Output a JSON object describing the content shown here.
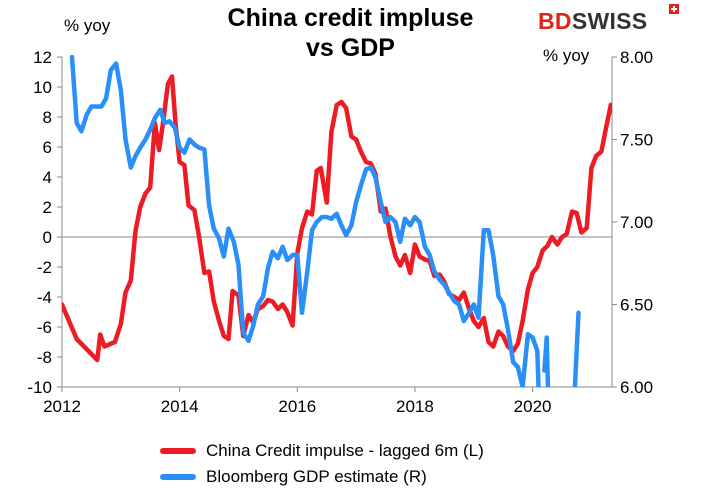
{
  "header": {
    "title_line1": "China credit impluse",
    "title_line2": "vs GDP",
    "brand_bd": "BD",
    "brand_swiss": "SWISS",
    "unit_left": "% yoy",
    "unit_right": "% yoy"
  },
  "colors": {
    "red": "#ed1c24",
    "blue": "#2a8ff7",
    "brand_red": "#e2231a"
  },
  "chart_data": {
    "type": "line",
    "title": "China credit impluse vs GDP",
    "x_ticks": [
      2012,
      2014,
      2016,
      2018,
      2020
    ],
    "x_tick_labels": [
      "2012",
      "2014",
      "2016",
      "2018",
      "2020"
    ],
    "xlim": [
      2012,
      2021.35
    ],
    "y_left": {
      "ylim": [
        -10,
        12
      ],
      "ticks": [
        -10,
        -8,
        -6,
        -4,
        -2,
        0,
        2,
        4,
        6,
        8,
        10,
        12
      ],
      "tick_labels": [
        "-10",
        "-8",
        "-6",
        "-4",
        "-2",
        "0",
        "2",
        "4",
        "6",
        "8",
        "10",
        "12"
      ],
      "unit": "% yoy"
    },
    "y_right": {
      "ylim": [
        6.0,
        8.0
      ],
      "ticks": [
        6.0,
        6.5,
        7.0,
        7.5,
        8.0
      ],
      "tick_labels": [
        "6.00",
        "6.50",
        "7.00",
        "7.50",
        "8.00"
      ],
      "unit": "% yoy"
    },
    "legend_position": "bottom",
    "series": [
      {
        "name": "China Credit impulse - lagged 6m (L)",
        "axis": "left",
        "color": "#ed1c24",
        "points": [
          [
            2012.0,
            -4.5
          ],
          [
            2012.25,
            -6.8
          ],
          [
            2012.5,
            -7.8
          ],
          [
            2012.6,
            -8.2
          ],
          [
            2012.65,
            -6.5
          ],
          [
            2012.72,
            -7.3
          ],
          [
            2012.9,
            -7.0
          ],
          [
            2013.0,
            -5.8
          ],
          [
            2013.08,
            -3.7
          ],
          [
            2013.17,
            -2.9
          ],
          [
            2013.25,
            0.4
          ],
          [
            2013.33,
            2.0
          ],
          [
            2013.42,
            2.9
          ],
          [
            2013.5,
            3.3
          ],
          [
            2013.58,
            7.6
          ],
          [
            2013.65,
            5.8
          ],
          [
            2013.72,
            7.7
          ],
          [
            2013.8,
            10.2
          ],
          [
            2013.87,
            10.7
          ],
          [
            2013.93,
            7.6
          ],
          [
            2014.0,
            5.0
          ],
          [
            2014.08,
            4.8
          ],
          [
            2014.15,
            2.1
          ],
          [
            2014.25,
            1.8
          ],
          [
            2014.33,
            0.0
          ],
          [
            2014.42,
            -2.4
          ],
          [
            2014.5,
            -2.3
          ],
          [
            2014.58,
            -4.3
          ],
          [
            2014.67,
            -5.6
          ],
          [
            2014.75,
            -6.6
          ],
          [
            2014.83,
            -6.8
          ],
          [
            2014.9,
            -3.6
          ],
          [
            2015.0,
            -3.9
          ],
          [
            2015.08,
            -6.6
          ],
          [
            2015.17,
            -5.2
          ],
          [
            2015.25,
            -5.7
          ],
          [
            2015.33,
            -4.8
          ],
          [
            2015.42,
            -4.6
          ],
          [
            2015.5,
            -4.2
          ],
          [
            2015.58,
            -4.3
          ],
          [
            2015.67,
            -4.8
          ],
          [
            2015.75,
            -4.5
          ],
          [
            2015.83,
            -5.0
          ],
          [
            2015.92,
            -5.9
          ],
          [
            2016.0,
            -1.1
          ],
          [
            2016.08,
            0.6
          ],
          [
            2016.17,
            1.7
          ],
          [
            2016.25,
            1.5
          ],
          [
            2016.33,
            4.4
          ],
          [
            2016.4,
            4.6
          ],
          [
            2016.5,
            2.3
          ],
          [
            2016.58,
            7.0
          ],
          [
            2016.67,
            8.8
          ],
          [
            2016.75,
            9.0
          ],
          [
            2016.83,
            8.6
          ],
          [
            2016.92,
            6.7
          ],
          [
            2017.0,
            6.5
          ],
          [
            2017.08,
            5.7
          ],
          [
            2017.17,
            5.0
          ],
          [
            2017.25,
            4.9
          ],
          [
            2017.33,
            4.2
          ],
          [
            2017.42,
            1.7
          ],
          [
            2017.5,
            1.9
          ],
          [
            2017.58,
            0.1
          ],
          [
            2017.67,
            -1.3
          ],
          [
            2017.75,
            -1.9
          ],
          [
            2017.83,
            -1.2
          ],
          [
            2017.92,
            -2.4
          ],
          [
            2018.0,
            -0.5
          ],
          [
            2018.08,
            -1.3
          ],
          [
            2018.17,
            -1.5
          ],
          [
            2018.25,
            -1.6
          ],
          [
            2018.33,
            -2.6
          ],
          [
            2018.42,
            -2.5
          ],
          [
            2018.5,
            -3.0
          ],
          [
            2018.58,
            -3.8
          ],
          [
            2018.67,
            -4.0
          ],
          [
            2018.75,
            -4.2
          ],
          [
            2018.83,
            -3.7
          ],
          [
            2018.92,
            -4.8
          ],
          [
            2019.0,
            -5.6
          ],
          [
            2019.08,
            -6.0
          ],
          [
            2019.17,
            -5.4
          ],
          [
            2019.25,
            -7.0
          ],
          [
            2019.33,
            -7.3
          ],
          [
            2019.42,
            -6.3
          ],
          [
            2019.5,
            -6.6
          ],
          [
            2019.58,
            -7.3
          ],
          [
            2019.67,
            -7.6
          ],
          [
            2019.75,
            -7.1
          ],
          [
            2019.83,
            -5.6
          ],
          [
            2019.92,
            -3.5
          ],
          [
            2020.0,
            -2.4
          ],
          [
            2020.08,
            -2.0
          ],
          [
            2020.17,
            -0.9
          ],
          [
            2020.25,
            -0.6
          ],
          [
            2020.33,
            0.0
          ],
          [
            2020.42,
            -0.5
          ],
          [
            2020.5,
            0.0
          ],
          [
            2020.58,
            0.2
          ],
          [
            2020.67,
            1.7
          ],
          [
            2020.75,
            1.6
          ],
          [
            2020.83,
            0.3
          ],
          [
            2020.92,
            0.6
          ],
          [
            2021.0,
            4.6
          ],
          [
            2021.08,
            5.4
          ],
          [
            2021.17,
            5.7
          ],
          [
            2021.25,
            7.3
          ],
          [
            2021.33,
            8.8
          ],
          [
            2021.35,
            8.8
          ]
        ]
      },
      {
        "name": "Bloomberg GDP estimate (R)",
        "axis": "right",
        "color": "#2a8ff7",
        "segments": [
          [
            [
              2012.17,
              8.0
            ],
            [
              2012.25,
              7.6
            ],
            [
              2012.33,
              7.55
            ],
            [
              2012.42,
              7.65
            ],
            [
              2012.5,
              7.7
            ],
            [
              2012.58,
              7.7
            ],
            [
              2012.67,
              7.7
            ],
            [
              2012.75,
              7.75
            ],
            [
              2012.83,
              7.92
            ],
            [
              2012.92,
              7.96
            ],
            [
              2013.0,
              7.8
            ],
            [
              2013.08,
              7.5
            ],
            [
              2013.17,
              7.33
            ],
            [
              2013.25,
              7.4
            ],
            [
              2013.33,
              7.45
            ],
            [
              2013.42,
              7.5
            ],
            [
              2013.5,
              7.56
            ],
            [
              2013.58,
              7.63
            ],
            [
              2013.67,
              7.68
            ],
            [
              2013.75,
              7.6
            ],
            [
              2013.83,
              7.61
            ],
            [
              2013.92,
              7.57
            ],
            [
              2014.0,
              7.45
            ],
            [
              2014.08,
              7.42
            ],
            [
              2014.17,
              7.5
            ],
            [
              2014.25,
              7.47
            ],
            [
              2014.33,
              7.45
            ],
            [
              2014.42,
              7.44
            ],
            [
              2014.5,
              7.1
            ],
            [
              2014.58,
              6.96
            ],
            [
              2014.67,
              6.9
            ],
            [
              2014.75,
              6.79
            ],
            [
              2014.83,
              6.96
            ],
            [
              2014.92,
              6.88
            ],
            [
              2015.0,
              6.74
            ],
            [
              2015.08,
              6.33
            ],
            [
              2015.17,
              6.28
            ],
            [
              2015.25,
              6.37
            ],
            [
              2015.33,
              6.5
            ],
            [
              2015.42,
              6.55
            ],
            [
              2015.5,
              6.72
            ],
            [
              2015.58,
              6.82
            ],
            [
              2015.67,
              6.78
            ],
            [
              2015.75,
              6.85
            ],
            [
              2015.83,
              6.77
            ],
            [
              2015.92,
              6.8
            ],
            [
              2016.0,
              6.8
            ],
            [
              2016.08,
              6.45
            ],
            [
              2016.17,
              6.7
            ],
            [
              2016.25,
              6.95
            ],
            [
              2016.33,
              7.0
            ],
            [
              2016.42,
              7.03
            ],
            [
              2016.5,
              7.03
            ],
            [
              2016.58,
              7.02
            ],
            [
              2016.67,
              7.05
            ],
            [
              2016.75,
              6.98
            ],
            [
              2016.83,
              6.92
            ],
            [
              2016.92,
              6.98
            ],
            [
              2017.0,
              7.12
            ],
            [
              2017.08,
              7.22
            ],
            [
              2017.17,
              7.32
            ],
            [
              2017.25,
              7.33
            ],
            [
              2017.33,
              7.27
            ],
            [
              2017.42,
              7.12
            ],
            [
              2017.5,
              7.0
            ],
            [
              2017.58,
              7.03
            ],
            [
              2017.67,
              7.0
            ],
            [
              2017.75,
              6.88
            ],
            [
              2017.83,
              7.02
            ],
            [
              2017.92,
              6.98
            ],
            [
              2018.0,
              7.03
            ],
            [
              2018.08,
              7.0
            ],
            [
              2018.17,
              6.85
            ],
            [
              2018.25,
              6.8
            ],
            [
              2018.33,
              6.7
            ],
            [
              2018.42,
              6.65
            ],
            [
              2018.5,
              6.62
            ],
            [
              2018.58,
              6.57
            ],
            [
              2018.67,
              6.52
            ],
            [
              2018.75,
              6.5
            ],
            [
              2018.83,
              6.4
            ],
            [
              2018.92,
              6.45
            ],
            [
              2019.0,
              6.5
            ],
            [
              2019.08,
              6.42
            ],
            [
              2019.17,
              6.95
            ],
            [
              2019.25,
              6.95
            ],
            [
              2019.33,
              6.8
            ],
            [
              2019.42,
              6.55
            ],
            [
              2019.5,
              6.5
            ],
            [
              2019.58,
              6.35
            ],
            [
              2019.67,
              6.15
            ],
            [
              2019.75,
              6.12
            ],
            [
              2019.83,
              6.0
            ],
            [
              2019.92,
              6.32
            ],
            [
              2020.0,
              6.3
            ],
            [
              2020.08,
              6.22
            ],
            [
              2020.1,
              6.0
            ]
          ],
          [
            [
              2020.2,
              6.1
            ],
            [
              2020.24,
              6.3
            ],
            [
              2020.26,
              6.0
            ]
          ],
          [
            [
              2020.72,
              6.0
            ],
            [
              2020.78,
              6.45
            ]
          ]
        ]
      }
    ]
  },
  "legend": [
    {
      "label": "China Credit impulse - lagged 6m (L)",
      "color": "#ed1c24"
    },
    {
      "label": "Bloomberg GDP estimate (R)",
      "color": "#2a8ff7"
    }
  ]
}
